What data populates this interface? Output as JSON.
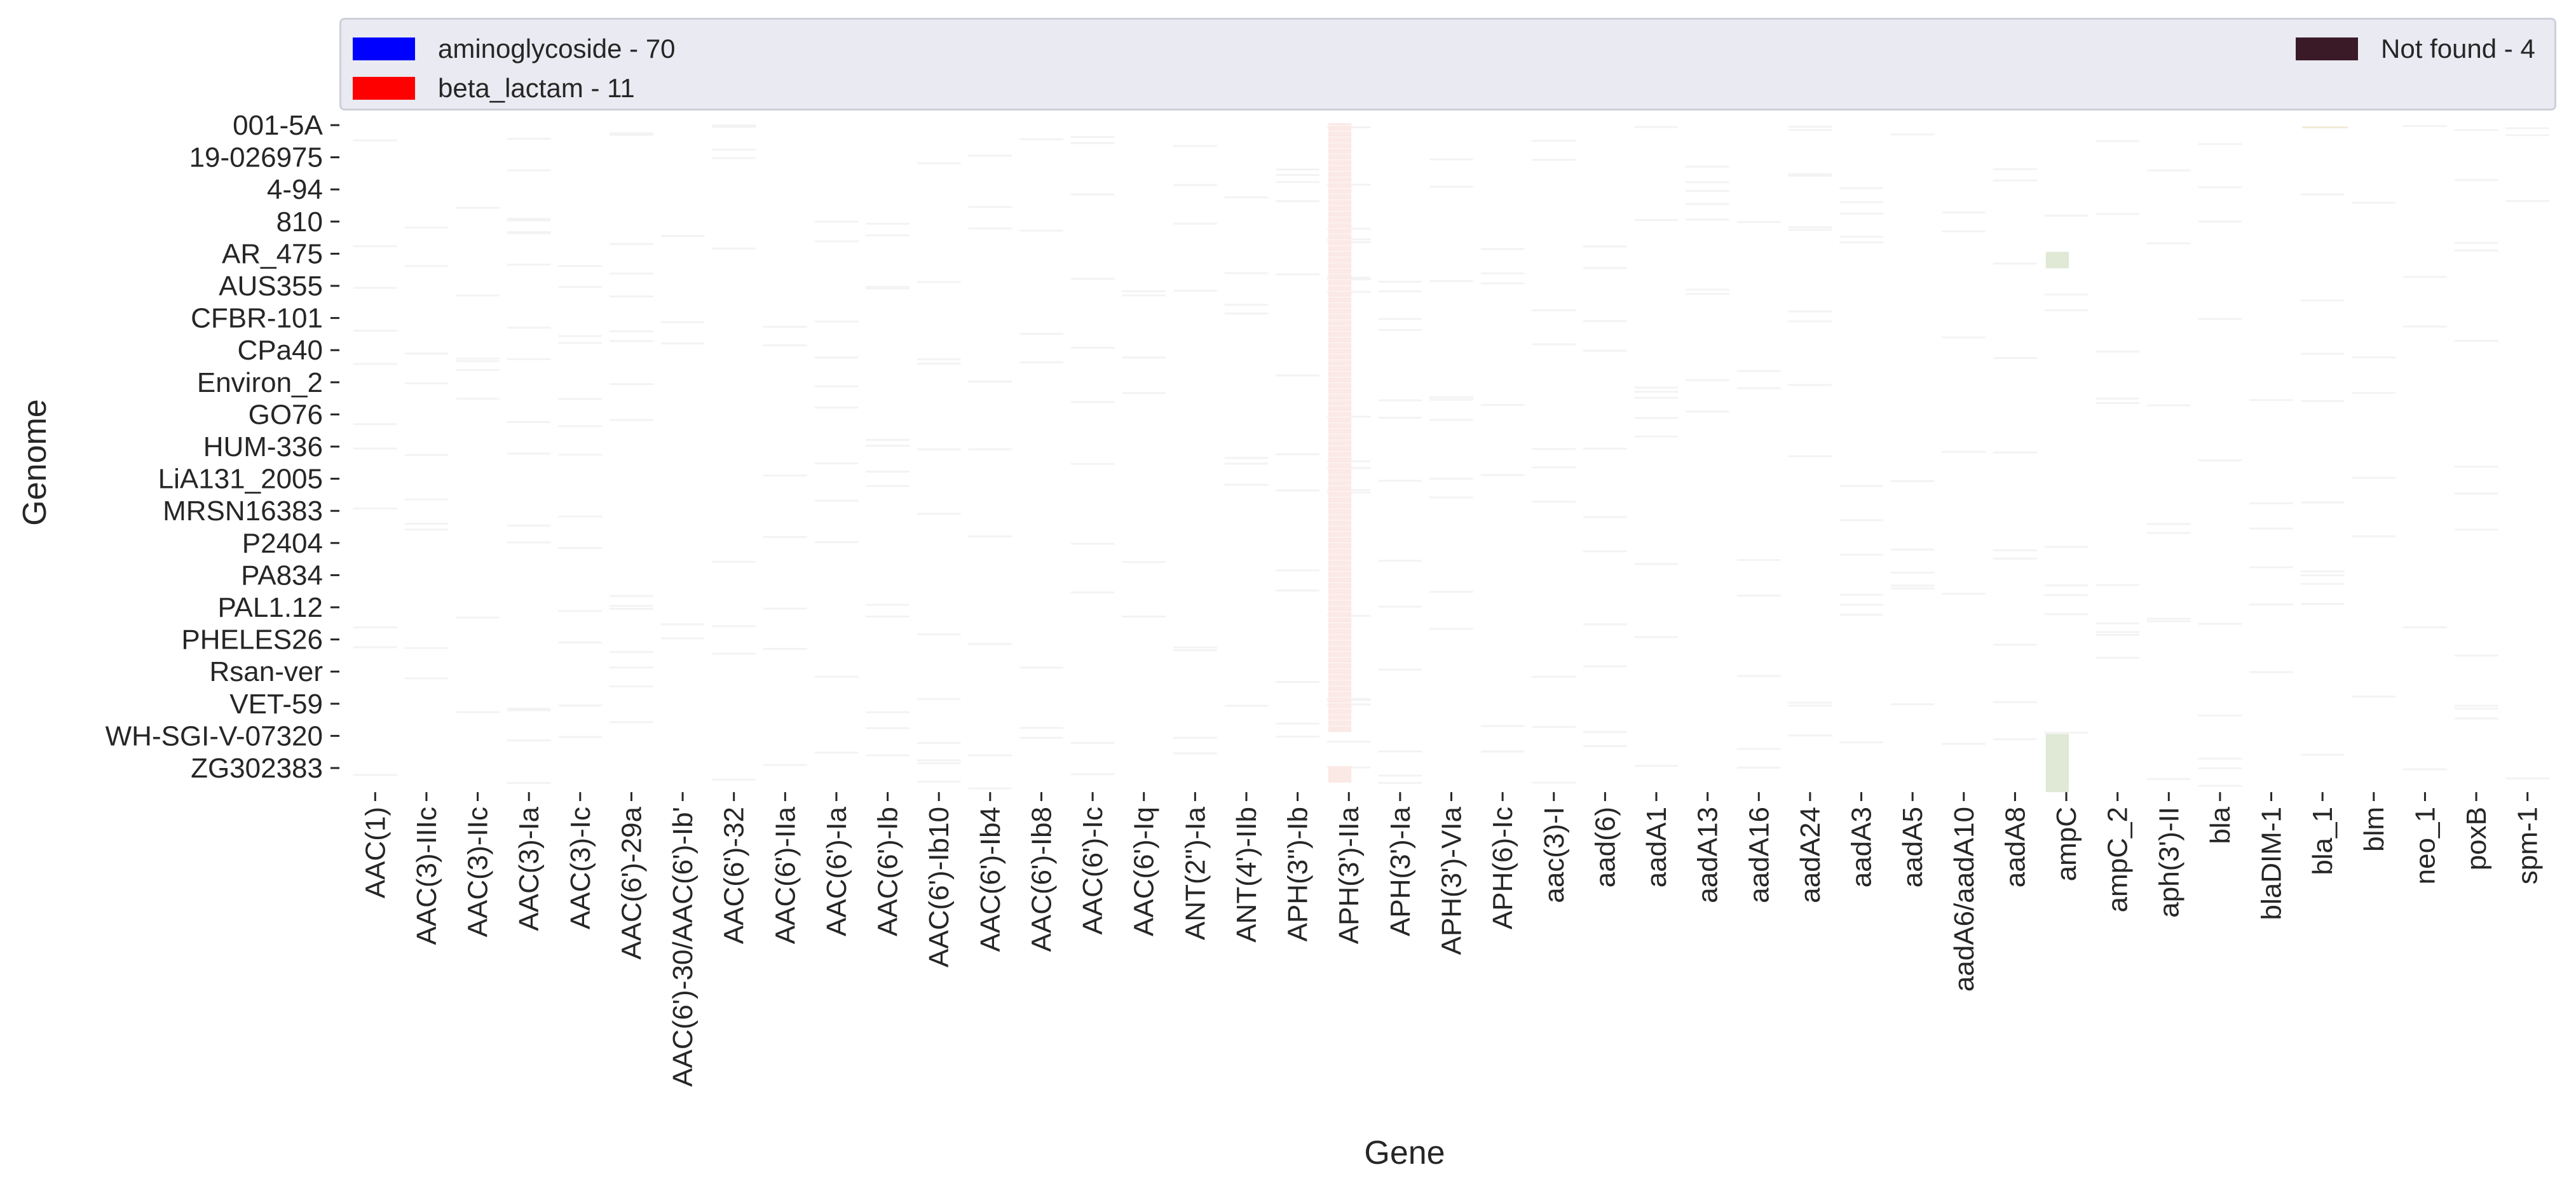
{
  "chart_data": {
    "type": "heatmap",
    "xlabel": "Gene",
    "ylabel": "Genome",
    "x_tick_labels": [
      "AAC(1)",
      "AAC(3)-IIIc",
      "AAC(3)-IIc",
      "AAC(3)-Ia",
      "AAC(3)-Ic",
      "AAC(6')-29a",
      "AAC(6')-30/AAC(6')-Ib'",
      "AAC(6')-32",
      "AAC(6')-IIa",
      "AAC(6')-Ia",
      "AAC(6')-Ib",
      "AAC(6')-Ib10",
      "AAC(6')-Ib4",
      "AAC(6')-Ib8",
      "AAC(6')-Ic",
      "AAC(6')-Iq",
      "ANT(2'')-Ia",
      "ANT(4')-IIb",
      "APH(3'')-Ib",
      "APH(3')-IIa",
      "APH(3')-Ia",
      "APH(3')-VIa",
      "APH(6)-Ic",
      "aac(3)-I",
      "aad(6)",
      "aadA1",
      "aadA13",
      "aadA16",
      "aadA24",
      "aadA3",
      "aadA5",
      "aadA6/aadA10",
      "aadA8",
      "ampC",
      "ampC_2",
      "aph(3')-II",
      "bla",
      "blaDIM-1",
      "bla_1",
      "blm",
      "neo_1",
      "poxB",
      "spm-1"
    ],
    "y_tick_labels": [
      "001-5A",
      "19-026975",
      "4-94",
      "810",
      "AR_475",
      "AUS355",
      "CFBR-101",
      "CPa40",
      "Environ_2",
      "GO76",
      "HUM-336",
      "LiA131_2005",
      "MRSN16383",
      "P2404",
      "PA834",
      "PAL1.12",
      "PHELES26",
      "Rsan-ver",
      "VET-59",
      "WH-SGI-V-07320",
      "ZG302383"
    ],
    "legend": {
      "placement": "top",
      "entries": [
        {
          "label": "aminoglycoside - 70",
          "color": "#0000ff"
        },
        {
          "label": "beta_lactam - 11",
          "color": "#ff0000"
        },
        {
          "label": "Not found - 4",
          "color": "#3b1a28"
        }
      ]
    },
    "cell_colors": {
      "background": "#ffffff",
      "faint_presence": "#f3f3f3",
      "APH(3')-IIa": "#fbe9e6",
      "ampC": "#dfe9d6",
      "bla_1": "#f1ecd8"
    },
    "highlighted_bands": [
      {
        "gene": "APH(3')-IIa",
        "from_row": "001-5A",
        "to_row": "VET-59",
        "color": "#fbe9e6"
      },
      {
        "gene": "APH(3')-IIa",
        "from_row": "ZG302383",
        "to_row": "ZG302383",
        "color": "#fbe9e6"
      },
      {
        "gene": "ampC",
        "from_row": "AR_475",
        "to_row": "AR_475",
        "color": "#dfe9d6"
      },
      {
        "gene": "ampC",
        "from_row": "WH-SGI-V-07320",
        "to_row": "ZG302383",
        "color": "#dfe9d6"
      }
    ],
    "grid": false
  }
}
